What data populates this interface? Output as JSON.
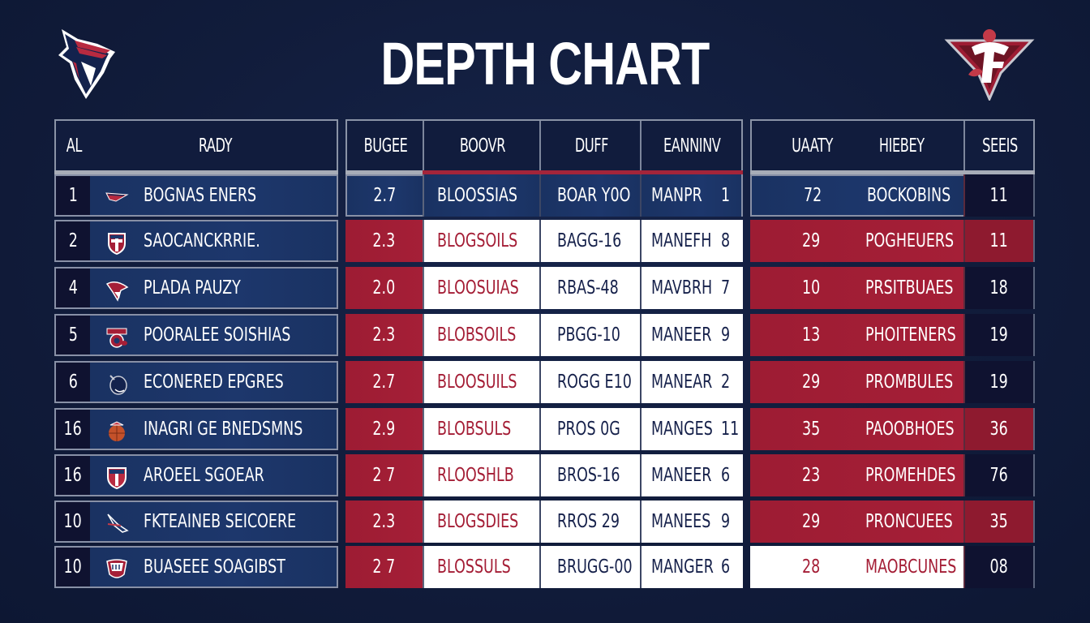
{
  "title": "DEPTH CHART",
  "colors": {
    "background": "#111c3b",
    "navy": "#1d376c",
    "red": "#a51f37",
    "dark": "#0f1230",
    "white": "#ffffff"
  },
  "logos": {
    "left": "hawk-shield-logo-icon",
    "right": "f-star-logo-icon"
  },
  "left_table": {
    "headers": [
      "AL",
      "RADY"
    ],
    "rows": [
      {
        "rank": "1",
        "icon": "winged-logo-icon",
        "name": "BOGNAS ENERS"
      },
      {
        "rank": "2",
        "icon": "shield-cross-logo-icon",
        "name": "SAOCANCKRRIE."
      },
      {
        "rank": "4",
        "icon": "hawk-head-logo-icon",
        "name": "PLADA PAUZY"
      },
      {
        "rank": "5",
        "icon": "g-badge-logo-icon",
        "name": "POORALEE SOISHIAS"
      },
      {
        "rank": "6",
        "icon": "bird-head-logo-icon",
        "name": "ECONERED EPGRES"
      },
      {
        "rank": "16",
        "icon": "basketball-logo-icon",
        "name": "INAGRI GE BNEDSMNS"
      },
      {
        "rank": "16",
        "icon": "shield-crest-logo-icon",
        "name": "AROEEL SGOEAR"
      },
      {
        "rank": "10",
        "icon": "eagle-logo-icon",
        "name": "FKTEAINEB SEICOERE"
      },
      {
        "rank": "10",
        "icon": "crest-badge-logo-icon",
        "name": "BUASEEE SOAGIBST"
      }
    ]
  },
  "middle_table": {
    "headers": [
      "BUGEE",
      "BOOVR",
      "DUFF",
      "EANNINV"
    ],
    "rows": [
      {
        "value": "2.7",
        "school": "BLOOSSIAS",
        "code": "BOAR Y0O",
        "status": "MANPR",
        "num": "1"
      },
      {
        "value": "2.3",
        "school": "BLOGSOILS",
        "code": "BAGG-16",
        "status": "MANEFH",
        "num": "8"
      },
      {
        "value": "2.0",
        "school": "BLOOSUIAS",
        "code": "RBAS-48",
        "status": "MAVBRH",
        "num": "7"
      },
      {
        "value": "2.3",
        "school": "BLOBSOILS",
        "code": "PBGG-10",
        "status": "MANEER",
        "num": "9"
      },
      {
        "value": "2.7",
        "school": "BLOOSUILS",
        "code": "ROGG E10",
        "status": "MANEAR",
        "num": "2"
      },
      {
        "value": "2.9",
        "school": "BLOBSULS",
        "code": "PROS 0G",
        "status": "MANGES",
        "num": "11"
      },
      {
        "value": "2 7",
        "school": "RLOOSHLB",
        "code": "BROS-16",
        "status": "MANEER",
        "num": "6"
      },
      {
        "value": "2.3",
        "school": "BLOGSDIES",
        "code": "RROS 29",
        "status": "MANEES",
        "num": "9"
      },
      {
        "value": "2 7",
        "school": "BLOSSULS",
        "code": "BRUGG-00",
        "status": "MANGER",
        "num": "6"
      }
    ]
  },
  "right_table": {
    "headers": [
      "UAATY",
      "HIEBEY",
      "SEEIS"
    ],
    "rows": [
      {
        "value": "72",
        "label": "BOCKOBINS",
        "score": "11"
      },
      {
        "value": "29",
        "label": "POGHEUERS",
        "score": "11"
      },
      {
        "value": "10",
        "label": "PRSITBUAES",
        "score": "18"
      },
      {
        "value": "13",
        "label": "PHOITENERS",
        "score": "19"
      },
      {
        "value": "29",
        "label": "PROMBULES",
        "score": "19"
      },
      {
        "value": "35",
        "label": "PAOOBHOES",
        "score": "36"
      },
      {
        "value": "23",
        "label": "PROMEHDES",
        "score": "76"
      },
      {
        "value": "29",
        "label": "PRONCUEES",
        "score": "35"
      },
      {
        "value": "28",
        "label": "MAOBCUNES",
        "score": "08"
      }
    ]
  }
}
